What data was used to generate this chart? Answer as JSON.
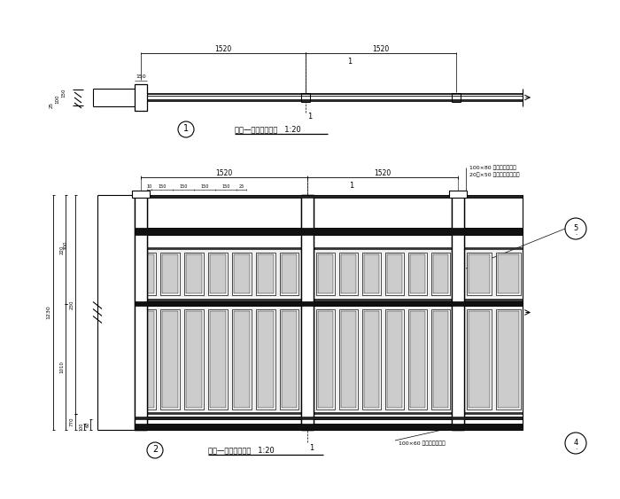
{
  "bg_color": "#ffffff",
  "line_color": "#000000",
  "gray_color": "#666666",
  "plan_title": "栏杆—标准段平面图   1:20",
  "elev_title": "栏杆—标准段立面图   1:20",
  "ann_top1": "100×80 满焊咖啡色塑木",
  "ann_top2": "20厚×50 复合咖啡色塑木条",
  "ann_bot": "100×60 满焊咖啡色塑木",
  "dim_1520": "1520",
  "label1": "1",
  "label2": "2",
  "label4": "4",
  "label5": "5",
  "dim_1230": "1230",
  "dim_1010": "1010",
  "dim_770": "770",
  "dim_220_top": "220",
  "dim_230": "230",
  "dim_300": "300",
  "dim_100": "100",
  "dim_60": "60",
  "dim_10": "10",
  "dim_150a": "150",
  "dim_150b": "150",
  "dim_150c": "150",
  "dim_150d": "150",
  "dim_25": "25",
  "plan_left_dims": [
    "150",
    "100",
    "25"
  ],
  "scale": "1:20"
}
